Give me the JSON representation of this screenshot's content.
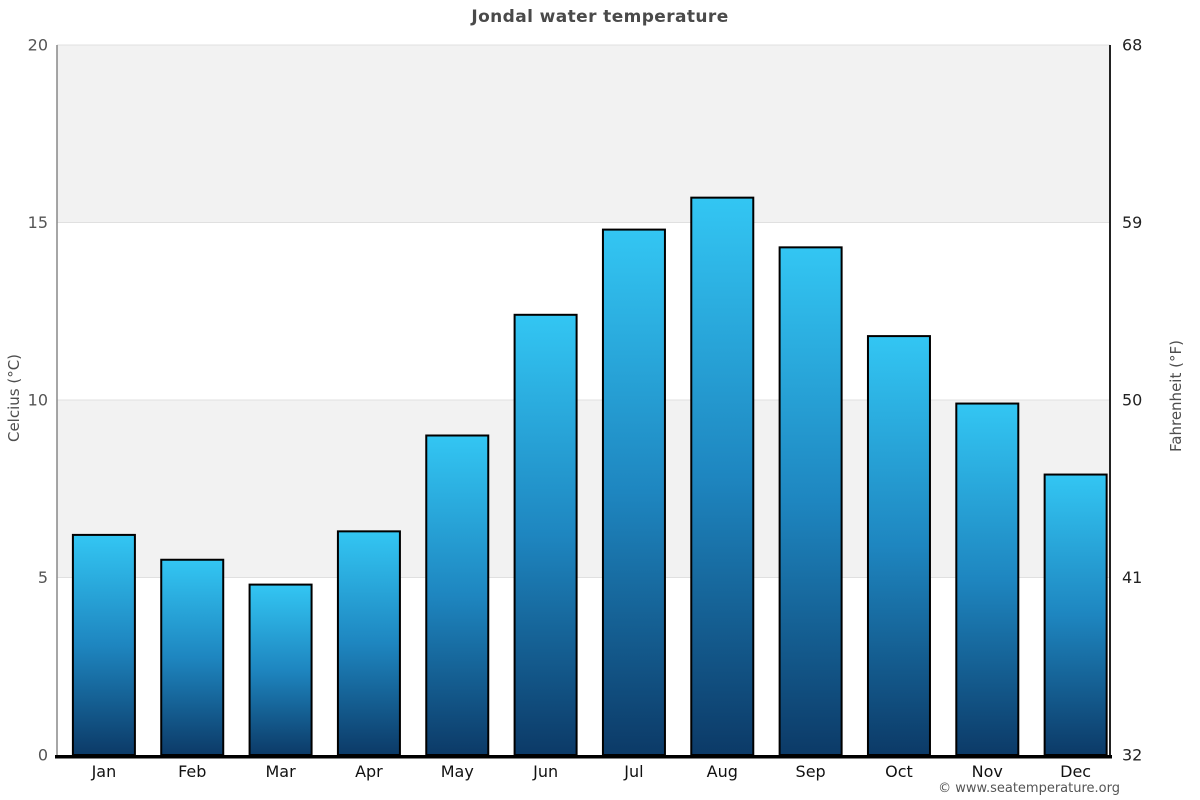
{
  "title": "Jondal water temperature",
  "footer": "© www.seatemperature.org",
  "chart_data": {
    "type": "bar",
    "title": "Jondal water temperature",
    "categories": [
      "Jan",
      "Feb",
      "Mar",
      "Apr",
      "May",
      "Jun",
      "Jul",
      "Aug",
      "Sep",
      "Oct",
      "Nov",
      "Dec"
    ],
    "values": [
      6.2,
      5.5,
      4.8,
      6.3,
      9.0,
      12.4,
      14.8,
      15.7,
      14.3,
      11.8,
      9.9,
      7.9
    ],
    "xlabel": "",
    "ylabel_left": "Celcius (°C)",
    "ylabel_right": "Fahrenheit (°F)",
    "ylim": [
      0,
      20
    ],
    "yticks_left": [
      0,
      5,
      10,
      15,
      20
    ],
    "yticks_right": [
      32,
      41,
      50,
      59,
      68
    ],
    "grid": "horizontal alternating bands, gridlines every 5°C",
    "legend": "none",
    "colors": {
      "bar_top": "#33c6f3",
      "bar_mid": "#1e86c0",
      "bar_bottom": "#0c3a67",
      "bar_stroke": "#000000",
      "band_gray": "#f2f2f2",
      "band_white": "#ffffff",
      "gridline": "#e0e0e0",
      "axis_left": "#888888",
      "axis_right": "#222222",
      "axis_bottom": "#000000",
      "tick_label_left": "#555555",
      "tick_label_right": "#222222",
      "month_label": "#111111",
      "title_color": "#4a4a4a"
    }
  }
}
